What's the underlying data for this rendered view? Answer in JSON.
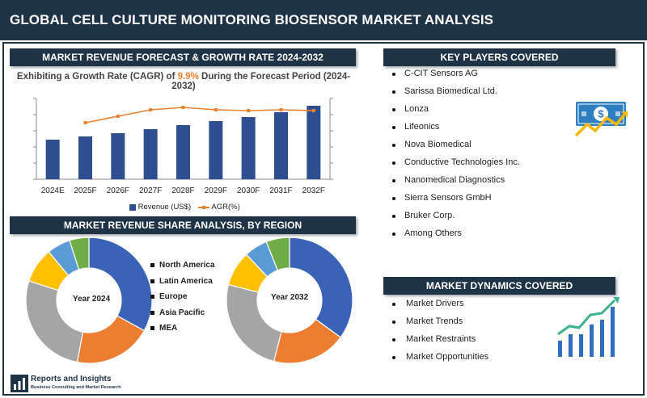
{
  "header": {
    "title": "GLOBAL CELL CULTURE MONITORING BIOSENSOR MARKET ANALYSIS"
  },
  "forecast": {
    "banner": "MARKET REVENUE FORECAST & GROWTH RATE 2024-2032",
    "subtitle_prefix": "Exhibiting a Growth Rate (CAGR) of ",
    "cagr": "9.9%",
    "subtitle_suffix": " During the Forecast Period (2024-2032)",
    "legend_revenue": "Revenue (US$)",
    "legend_agr": "AGR(%)"
  },
  "share": {
    "banner": "MARKET REVENUE SHARE ANALYSIS, BY REGION",
    "donut1_label": "Year 2024",
    "donut2_label": "Year 2032",
    "legend": [
      "North America",
      "Latin America",
      "Europe",
      "Asia Pacific",
      "MEA"
    ]
  },
  "players": {
    "banner": "KEY PLAYERS COVERED",
    "items": [
      "C-CIT Sensors AG",
      "Sarissa Biomedical Ltd.",
      "Lonza",
      "Lifeonics",
      "Nova Biomedical",
      "Conductive Technologies Inc.",
      "Nanomedical Diagnostics",
      "Sierra Sensors GmbH",
      "Bruker Corp.",
      "Among Others"
    ],
    "icon": "dollar-growth-icon"
  },
  "dynamics": {
    "banner": "MARKET DYNAMICS COVERED",
    "items": [
      "Market Drivers",
      "Market Trends",
      "Market Restraints",
      "Market Opportunities"
    ],
    "icon": "bar-growth-icon"
  },
  "logo": {
    "name": "Reports and Insights",
    "tagline": "Business Consulting and Market Research"
  },
  "colors": {
    "navy": "#1f3346",
    "bar": "#2e4e8f",
    "line": "#e8822e",
    "north_america": "#3a63b8",
    "latin_america": "#ed7d31",
    "europe": "#a5a5a5",
    "asia_pacific": "#ffc000",
    "mea": "#5b9bd5",
    "extra": "#70ad47"
  },
  "chart_data": [
    {
      "type": "bar",
      "categories": [
        "2024E",
        "2025F",
        "2026F",
        "2027F",
        "2028F",
        "2029F",
        "2030F",
        "2031F",
        "2032F"
      ],
      "series": [
        {
          "name": "Revenue (US$)",
          "values": [
            49,
            53,
            57,
            62,
            67,
            72,
            77,
            83,
            91
          ]
        },
        {
          "name": "AGR(%)",
          "type": "line",
          "values": [
            null,
            70,
            78,
            86,
            89,
            86,
            85,
            86,
            85
          ]
        }
      ],
      "ylim": [
        0,
        100
      ],
      "grid": false,
      "legend": "bottom"
    },
    {
      "type": "pie",
      "title": "Year 2024",
      "categories": [
        "North America",
        "Latin America",
        "Europe",
        "Asia Pacific",
        "MEA",
        ""
      ],
      "values": [
        33,
        20,
        27,
        9,
        6,
        5
      ]
    },
    {
      "type": "pie",
      "title": "Year 2032",
      "categories": [
        "North America",
        "Latin America",
        "Europe",
        "Asia Pacific",
        "MEA",
        ""
      ],
      "values": [
        35,
        19,
        25,
        9,
        6,
        6
      ]
    }
  ]
}
